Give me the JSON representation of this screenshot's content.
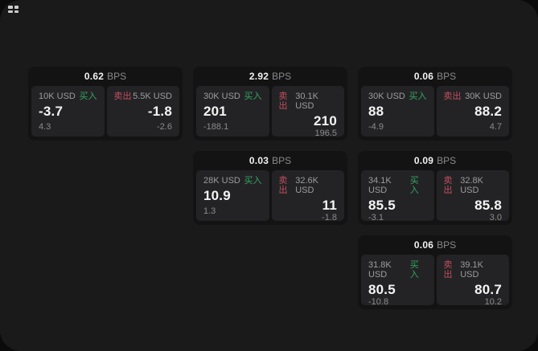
{
  "app": {
    "background": "#0b0b0c",
    "panel_background": "#1a1a1b",
    "card_background": "#131314",
    "tile_background": "#232325"
  },
  "colors": {
    "buy_green": "#34a562",
    "sell_red": "#c24f60",
    "value_white": "#f4f4f5",
    "muted_gray": "#8b8b8d"
  },
  "icons": {
    "top_left": "grip-icon"
  },
  "labels": {
    "buy": "买入",
    "sell": "卖出",
    "bps_unit": "BPS"
  },
  "cards": [
    {
      "bps": "0.62",
      "buy": {
        "size": "10K USD",
        "price": "-3.7",
        "delta": "4.3"
      },
      "sell": {
        "size": "5.5K USD",
        "price": "-1.8",
        "delta": "-2.6"
      }
    },
    {
      "bps": "2.92",
      "buy": {
        "size": "30K USD",
        "price": "201",
        "delta": "-188.1"
      },
      "sell": {
        "size": "30.1K USD",
        "price": "210",
        "delta": "196.5"
      }
    },
    {
      "bps": "0.06",
      "buy": {
        "size": "30K USD",
        "price": "88",
        "delta": "-4.9"
      },
      "sell": {
        "size": "30K USD",
        "price": "88.2",
        "delta": "4.7"
      }
    },
    {
      "bps": "0.03",
      "buy": {
        "size": "28K USD",
        "price": "10.9",
        "delta": "1.3"
      },
      "sell": {
        "size": "32.6K USD",
        "price": "11",
        "delta": "-1.8"
      }
    },
    {
      "bps": "0.09",
      "buy": {
        "size": "34.1K USD",
        "price": "85.5",
        "delta": "-3.1"
      },
      "sell": {
        "size": "32.8K USD",
        "price": "85.8",
        "delta": "3.0"
      }
    },
    {
      "bps": "0.06",
      "buy": {
        "size": "31.8K USD",
        "price": "80.5",
        "delta": "-10.8"
      },
      "sell": {
        "size": "39.1K USD",
        "price": "80.7",
        "delta": "10.2"
      }
    }
  ]
}
